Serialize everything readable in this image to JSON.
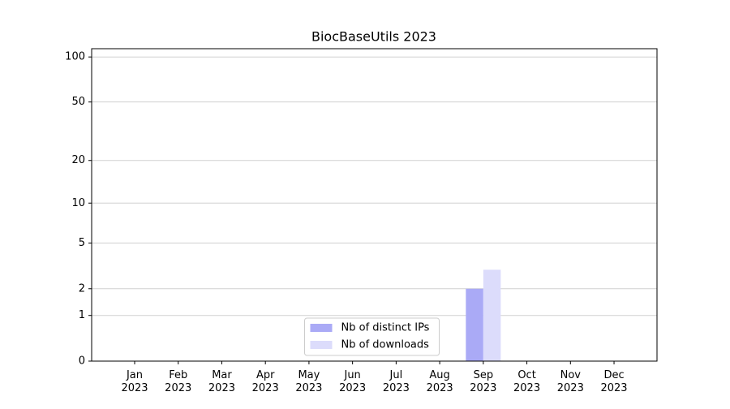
{
  "chart_data": {
    "type": "bar",
    "title": "BiocBaseUtils 2023",
    "scale": "symlog",
    "categories": [
      "Jan\n2023",
      "Feb\n2023",
      "Mar\n2023",
      "Apr\n2023",
      "May\n2023",
      "Jun\n2023",
      "Jul\n2023",
      "Aug\n2023",
      "Sep\n2023",
      "Oct\n2023",
      "Nov\n2023",
      "Dec\n2023"
    ],
    "series": [
      {
        "name": "Nb of distinct IPs",
        "color": "#aaaaf6",
        "values": [
          0,
          0,
          0,
          0,
          0,
          0,
          0,
          0,
          2,
          0,
          0,
          0
        ]
      },
      {
        "name": "Nb of downloads",
        "color": "#dcdcfb",
        "values": [
          0,
          0,
          0,
          0,
          0,
          0,
          0,
          0,
          3,
          0,
          0,
          0
        ]
      }
    ],
    "ylim": [
      0,
      113.5
    ],
    "yticks": [
      0,
      1,
      2,
      5,
      10,
      20,
      50,
      100
    ],
    "grid": true,
    "legend": "lower center"
  }
}
